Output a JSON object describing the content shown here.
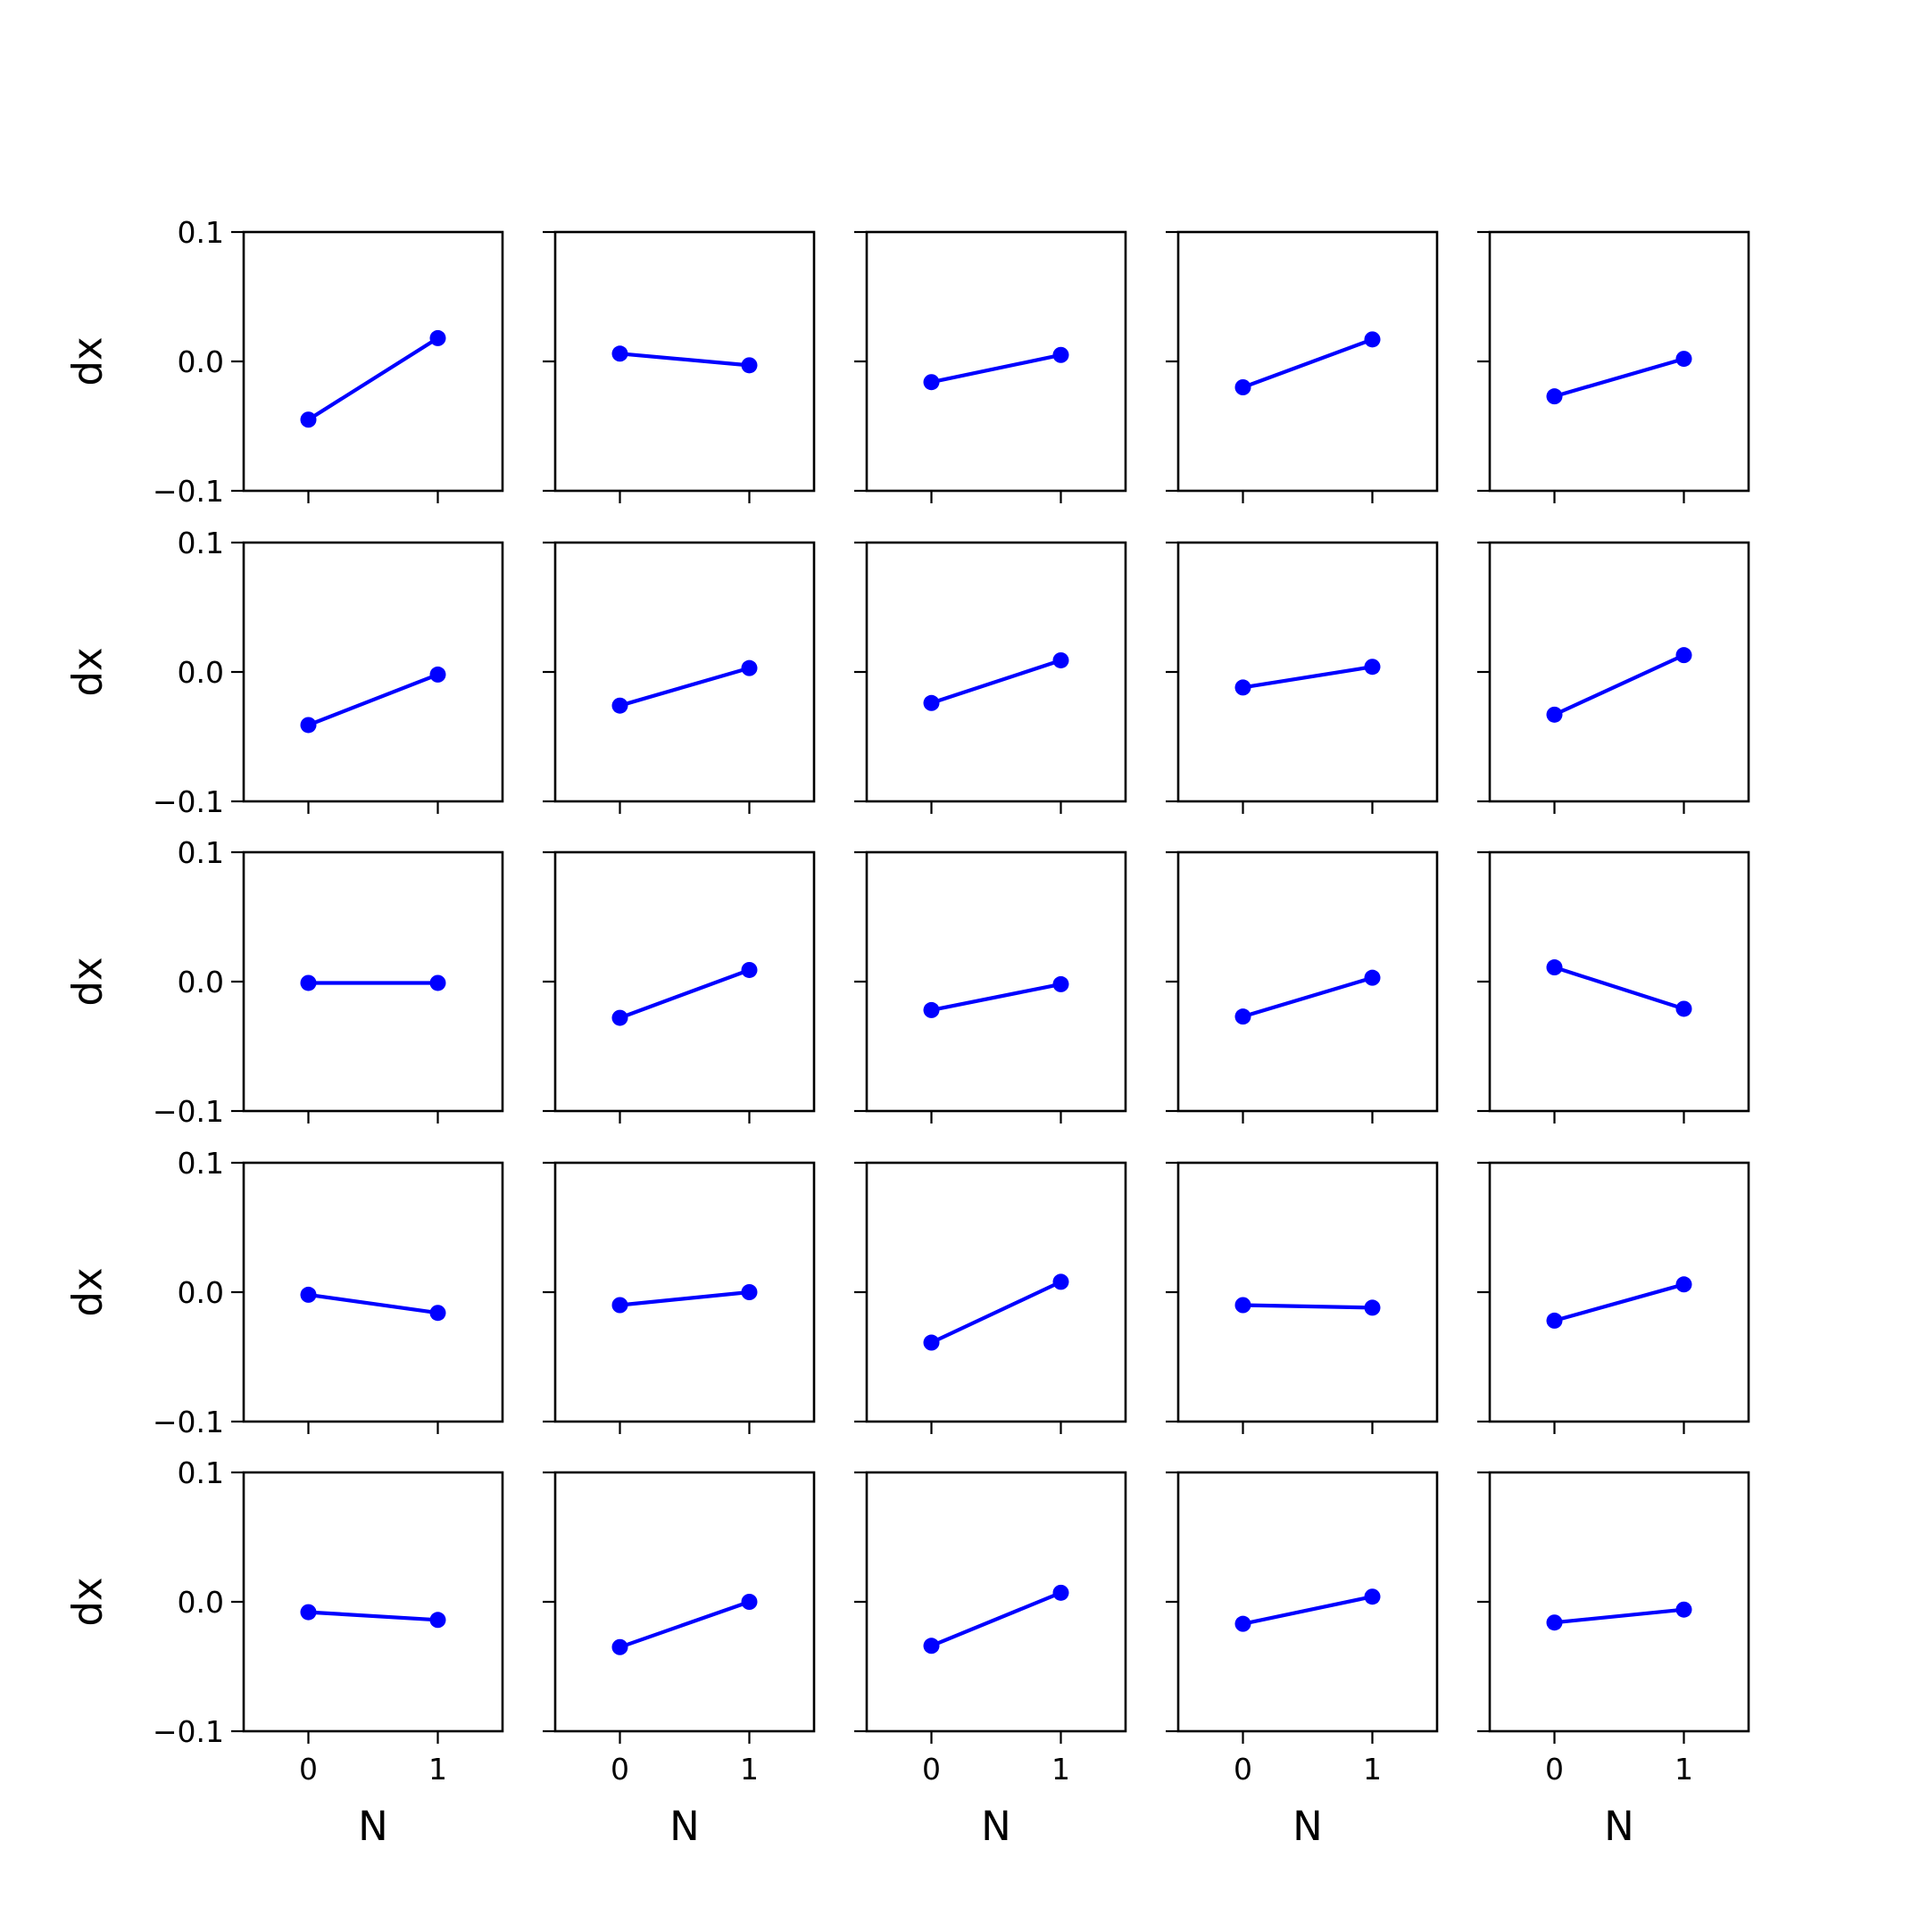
{
  "figure": {
    "line_color": "#0000ff",
    "axes_color": "#000000",
    "background": "#ffffff"
  },
  "chart_data": {
    "type": "line",
    "layout": "5x5 small multiples",
    "xlabel": "N",
    "ylabel": "dx",
    "xticks": [
      0,
      1
    ],
    "xtick_labels": [
      "0",
      "1"
    ],
    "yticks": [
      -0.1,
      0.0,
      0.1
    ],
    "ytick_labels": [
      "−0.1",
      "0.0",
      "0.1"
    ],
    "xlim": [
      -0.5,
      1.5
    ],
    "ylim": [
      -0.1,
      0.1
    ],
    "grid": false,
    "marker": "circle",
    "panels": [
      {
        "x": [
          0,
          1
        ],
        "y": [
          -0.045,
          0.018
        ]
      },
      {
        "x": [
          0,
          1
        ],
        "y": [
          0.006,
          -0.003
        ]
      },
      {
        "x": [
          0,
          1
        ],
        "y": [
          -0.016,
          0.005
        ]
      },
      {
        "x": [
          0,
          1
        ],
        "y": [
          -0.02,
          0.017
        ]
      },
      {
        "x": [
          0,
          1
        ],
        "y": [
          -0.027,
          0.002
        ]
      },
      {
        "x": [
          0,
          1
        ],
        "y": [
          -0.041,
          -0.002
        ]
      },
      {
        "x": [
          0,
          1
        ],
        "y": [
          -0.026,
          0.003
        ]
      },
      {
        "x": [
          0,
          1
        ],
        "y": [
          -0.024,
          0.009
        ]
      },
      {
        "x": [
          0,
          1
        ],
        "y": [
          -0.012,
          0.004
        ]
      },
      {
        "x": [
          0,
          1
        ],
        "y": [
          -0.033,
          0.013
        ]
      },
      {
        "x": [
          0,
          1
        ],
        "y": [
          -0.001,
          -0.001
        ]
      },
      {
        "x": [
          0,
          1
        ],
        "y": [
          -0.028,
          0.009
        ]
      },
      {
        "x": [
          0,
          1
        ],
        "y": [
          -0.022,
          -0.002
        ]
      },
      {
        "x": [
          0,
          1
        ],
        "y": [
          -0.027,
          0.003
        ]
      },
      {
        "x": [
          0,
          1
        ],
        "y": [
          0.011,
          -0.021
        ]
      },
      {
        "x": [
          0,
          1
        ],
        "y": [
          -0.002,
          -0.016
        ]
      },
      {
        "x": [
          0,
          1
        ],
        "y": [
          -0.01,
          0.0
        ]
      },
      {
        "x": [
          0,
          1
        ],
        "y": [
          -0.039,
          0.008
        ]
      },
      {
        "x": [
          0,
          1
        ],
        "y": [
          -0.01,
          -0.012
        ]
      },
      {
        "x": [
          0,
          1
        ],
        "y": [
          -0.022,
          0.006
        ]
      },
      {
        "x": [
          0,
          1
        ],
        "y": [
          -0.008,
          -0.014
        ]
      },
      {
        "x": [
          0,
          1
        ],
        "y": [
          -0.035,
          0.0
        ]
      },
      {
        "x": [
          0,
          1
        ],
        "y": [
          -0.034,
          0.007
        ]
      },
      {
        "x": [
          0,
          1
        ],
        "y": [
          -0.017,
          0.004
        ]
      },
      {
        "x": [
          0,
          1
        ],
        "y": [
          -0.016,
          -0.006
        ]
      }
    ]
  }
}
